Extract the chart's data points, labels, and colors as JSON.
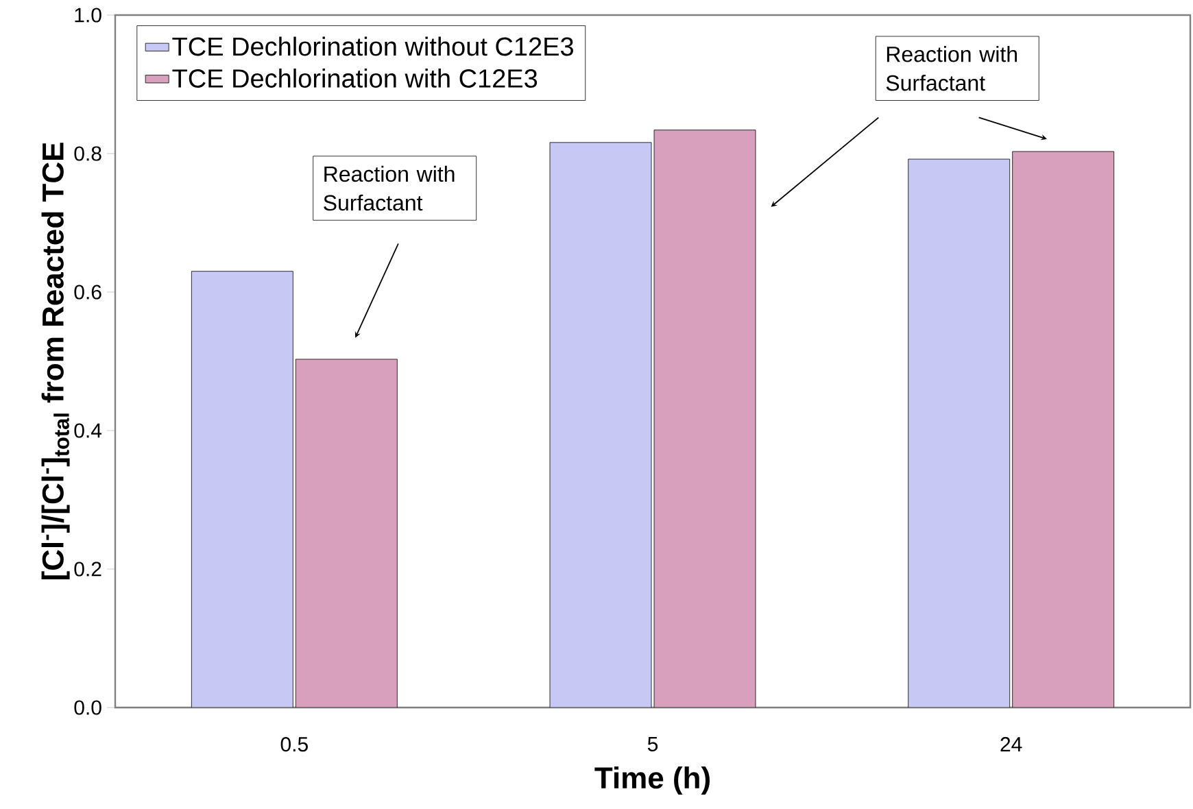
{
  "chart_data": {
    "type": "bar",
    "xlabel": "Time (h)",
    "ylabel": "[Cl$^{-}$]/[Cl$^{-}$]$_{total}$ from Reacted TCE",
    "categories": [
      "0.5",
      "5",
      "24"
    ],
    "series": [
      {
        "name": "TCE Dechlorination without C12E3",
        "color": "#c8c8f5",
        "values": [
          0.63,
          0.816,
          0.792
        ]
      },
      {
        "name": "TCE Dechlorination with C12E3",
        "color": "#d8a0bc",
        "values": [
          0.503,
          0.834,
          0.803
        ]
      }
    ],
    "ylim": [
      0,
      1
    ],
    "yticks": [
      {
        "value": 0,
        "label": "0.0"
      },
      {
        "value": 0.2,
        "label": "0.2"
      },
      {
        "value": 0.4,
        "label": "0.4"
      },
      {
        "value": 0.6,
        "label": "0.6"
      },
      {
        "value": 0.8,
        "label": "0.8"
      },
      {
        "value": 1,
        "label": "1.0"
      }
    ],
    "grid": false,
    "legend": "top left",
    "annotations": [
      "Reaction with Surfactant",
      "Reaction with Surfactant"
    ]
  }
}
